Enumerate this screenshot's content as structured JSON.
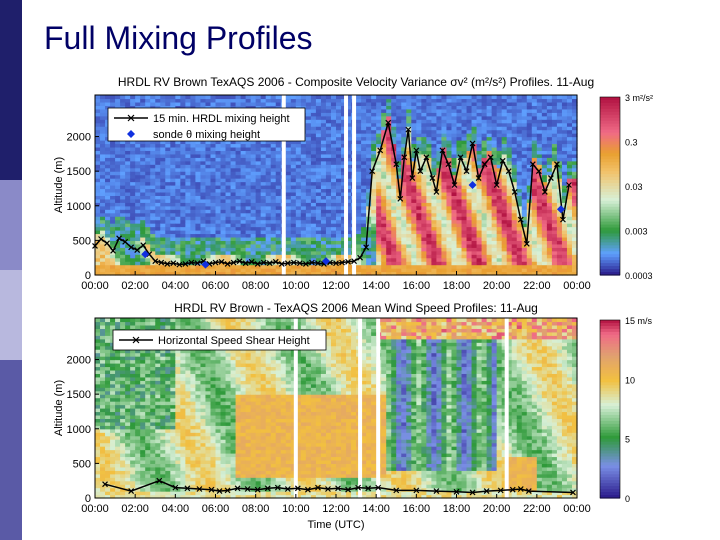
{
  "slide": {
    "title": "Full Mixing Profiles"
  },
  "colors": {
    "sidebar_top": "#1f1f6b",
    "sidebar_mid": "#8a8ac8",
    "sidebar_low": "#b8b8de",
    "sidebar_bottom": "#5a5aa6",
    "title": "#000066"
  },
  "chart_data": [
    {
      "type": "heatmap",
      "title": "HRDL RV Brown TexAQS 2006 - Composite Velocity Variance σv² (m²/s²) Profiles. 11-Aug",
      "xlabel": "",
      "ylabel": "Altitude (m)",
      "xlim": [
        0,
        24
      ],
      "ylim": [
        0,
        2600
      ],
      "xticks": [
        "00:00",
        "02:00",
        "04:00",
        "06:00",
        "08:00",
        "10:00",
        "12:00",
        "14:00",
        "16:00",
        "18:00",
        "20:00",
        "22:00",
        "00:00"
      ],
      "yticks": [
        "0",
        "500",
        "1000",
        "1500",
        "2000"
      ],
      "colorbar": {
        "labels": [
          "3 m²/s²",
          "0.3",
          "0.03",
          "0.003",
          "0.0003"
        ]
      },
      "legend": [
        "15 min. HRDL mixing height",
        "sonde θ mixing height"
      ],
      "series": [
        {
          "name": "15 min. HRDL mixing height",
          "x": [
            0.0,
            0.3,
            0.6,
            0.9,
            1.2,
            1.5,
            1.8,
            2.1,
            2.4,
            2.7,
            3.0,
            3.3,
            3.6,
            3.9,
            4.2,
            4.5,
            4.8,
            5.1,
            5.4,
            5.7,
            6.0,
            6.3,
            6.6,
            6.9,
            7.2,
            7.5,
            7.8,
            8.1,
            8.4,
            8.7,
            9.0,
            9.3,
            9.6,
            9.9,
            10.2,
            10.5,
            10.8,
            11.1,
            11.4,
            11.7,
            12.0,
            12.3,
            12.6,
            12.9,
            13.2,
            13.5,
            13.8,
            14.2,
            14.6,
            15.0,
            15.2,
            15.4,
            15.6,
            15.8,
            16.0,
            16.2,
            16.5,
            16.8,
            17.0,
            17.3,
            17.6,
            17.9,
            18.2,
            18.5,
            18.8,
            19.1,
            19.4,
            19.7,
            20.0,
            20.3,
            20.6,
            20.9,
            21.2,
            21.5,
            21.8,
            22.1,
            22.4,
            22.7,
            23.0,
            23.3,
            23.6
          ],
          "y": [
            420,
            520,
            460,
            350,
            530,
            480,
            400,
            360,
            430,
            300,
            200,
            180,
            160,
            170,
            150,
            160,
            180,
            170,
            200,
            160,
            180,
            190,
            160,
            180,
            200,
            170,
            190,
            160,
            180,
            170,
            190,
            160,
            170,
            180,
            170,
            160,
            180,
            170,
            160,
            180,
            170,
            180,
            190,
            200,
            250,
            400,
            1500,
            1800,
            2200,
            1600,
            1100,
            1700,
            2100,
            1400,
            1800,
            1500,
            1700,
            1400,
            1200,
            1800,
            1600,
            1300,
            1700,
            1500,
            1900,
            1400,
            1600,
            1700,
            1300,
            1650,
            1500,
            1200,
            800,
            450,
            1600,
            1500,
            1200,
            1400,
            1600,
            800,
            1300
          ]
        },
        {
          "name": "sonde θ mixing height",
          "x": [
            2.5,
            5.5,
            11.5,
            18.8,
            23.2
          ],
          "y": [
            300,
            150,
            200,
            1300,
            950
          ]
        }
      ]
    },
    {
      "type": "heatmap",
      "title": "HRDL RV Brown - TexAQS 2006 Mean Wind Speed Profiles: 11-Aug",
      "xlabel": "Time (UTC)",
      "ylabel": "Altitude (m)",
      "xlim": [
        0,
        24
      ],
      "ylim": [
        0,
        2600
      ],
      "xticks": [
        "00:00",
        "02:00",
        "04:00",
        "06:00",
        "08:00",
        "10:00",
        "12:00",
        "14:00",
        "16:00",
        "18:00",
        "20:00",
        "22:00",
        "00:00"
      ],
      "yticks": [
        "0",
        "500",
        "1000",
        "1500",
        "2000"
      ],
      "colorbar": {
        "labels": [
          "15 m/s",
          "10",
          "5",
          "0"
        ]
      },
      "legend": [
        "Horizontal Speed Shear Height"
      ],
      "series": [
        {
          "name": "Horizontal Speed Shear Height",
          "x": [
            0.5,
            1.8,
            3.2,
            4.0,
            4.6,
            5.2,
            5.8,
            6.2,
            6.6,
            7.1,
            7.6,
            8.1,
            8.6,
            9.1,
            9.6,
            10.1,
            10.6,
            11.1,
            11.6,
            12.1,
            12.6,
            13.1,
            13.6,
            14.1,
            15.0,
            16.0,
            17.0,
            18.0,
            18.8,
            19.5,
            20.2,
            20.8,
            21.2,
            21.6,
            23.8
          ],
          "y": [
            200,
            100,
            250,
            150,
            140,
            130,
            120,
            100,
            110,
            140,
            130,
            120,
            140,
            150,
            130,
            140,
            120,
            150,
            130,
            140,
            120,
            150,
            140,
            150,
            110,
            110,
            100,
            90,
            80,
            100,
            110,
            120,
            130,
            100,
            80
          ]
        }
      ]
    }
  ]
}
